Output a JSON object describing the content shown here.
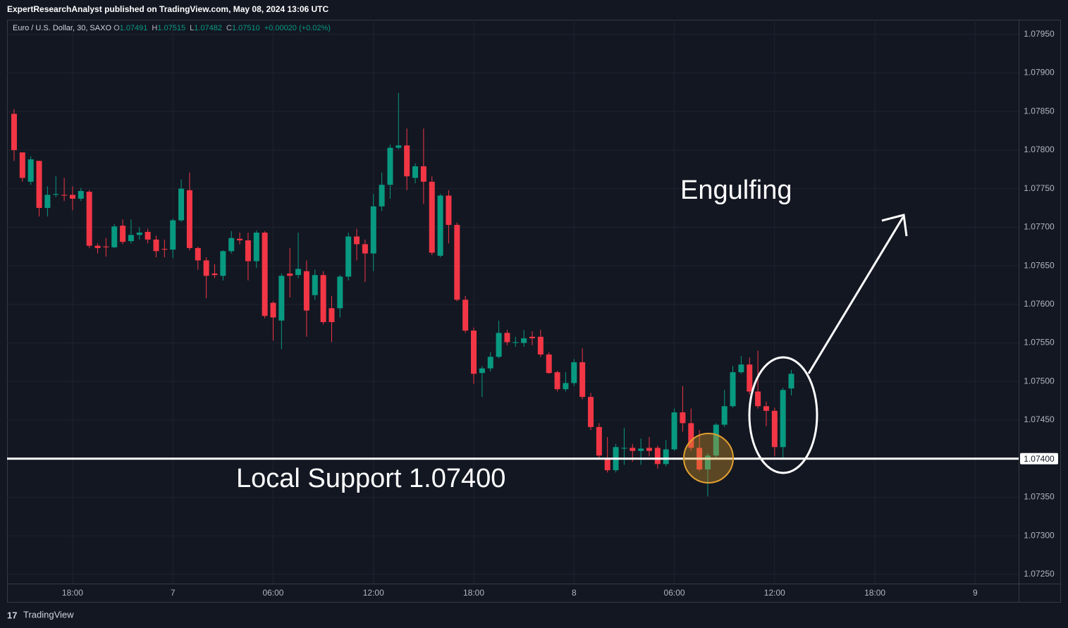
{
  "header": {
    "title": "ExpertResearchAnalyst published on TradingView.com, May 08, 2024 13:06 UTC"
  },
  "footer": {
    "brand": "TradingView"
  },
  "chart_data": {
    "type": "candlestick",
    "legend": {
      "symbol": "Euro / U.S. Dollar, 30, SAXO",
      "o_key": "O",
      "o": "1.07491",
      "h_key": "H",
      "h": "1.07515",
      "l_key": "L",
      "l": "1.07482",
      "c_key": "C",
      "c": "1.07510",
      "change": "+0.00020 (+0.02%)"
    },
    "up_color": "#089981",
    "down_color": "#f23645",
    "open": [
      1.07847,
      1.07797,
      1.07759,
      1.07786,
      1.07725,
      1.07742,
      1.07742,
      1.07742,
      1.07737,
      1.07746,
      1.07676,
      1.07675,
      1.07674,
      1.07702,
      1.07682,
      1.0769,
      1.07694,
      1.07684,
      1.07672,
      1.07671,
      1.07709,
      1.07748,
      1.07673,
      1.07657,
      1.0764,
      1.07637,
      1.07669,
      1.07685,
      1.07683,
      1.07656,
      1.07693,
      1.07602,
      1.07579,
      1.0764,
      1.07638,
      1.07643,
      1.07612,
      1.07638,
      1.07595,
      1.07595,
      1.07636,
      1.07688,
      1.07678,
      1.07666,
      1.07727,
      1.07755,
      1.07803,
      1.07806,
      1.07764,
      1.07779,
      1.07759,
      1.07663,
      1.07741,
      1.07703,
      1.07606,
      1.07566,
      1.07511,
      1.07517,
      1.07532,
      1.07563,
      1.0755,
      1.0755,
      1.07558,
      1.07558,
      1.07535,
      1.07512,
      1.0749,
      1.07498,
      1.07525,
      1.0748,
      1.07441,
      1.07401,
      1.07385,
      1.07413,
      1.07414,
      1.0741,
      1.07414,
      1.07414,
      1.07393,
      1.07412,
      1.0746,
      1.07446,
      1.07414,
      1.07386,
      1.07404,
      1.07444,
      1.07468,
      1.07512,
      1.07522,
      1.07487,
      1.07468,
      1.07462,
      1.07415,
      1.07491
    ],
    "high": [
      1.07853,
      1.07797,
      1.07792,
      1.07786,
      1.07753,
      1.07766,
      1.07764,
      1.07753,
      1.07751,
      1.07748,
      1.07679,
      1.07686,
      1.07704,
      1.0771,
      1.0771,
      1.077,
      1.07698,
      1.07689,
      1.07684,
      1.07711,
      1.07762,
      1.07771,
      1.07675,
      1.07661,
      1.07652,
      1.0767,
      1.07695,
      1.07693,
      1.07693,
      1.07696,
      1.07695,
      1.07604,
      1.0764,
      1.07673,
      1.07693,
      1.07657,
      1.07645,
      1.07643,
      1.07611,
      1.07638,
      1.07693,
      1.07698,
      1.07684,
      1.07743,
      1.07771,
      1.07807,
      1.07874,
      1.07828,
      1.07783,
      1.07828,
      1.07766,
      1.07743,
      1.07748,
      1.07706,
      1.07611,
      1.0757,
      1.0752,
      1.07538,
      1.07579,
      1.07567,
      1.07558,
      1.07567,
      1.07565,
      1.07567,
      1.07538,
      1.07514,
      1.07512,
      1.07529,
      1.07543,
      1.07485,
      1.07446,
      1.07428,
      1.07419,
      1.0744,
      1.07419,
      1.07426,
      1.07428,
      1.07417,
      1.07424,
      1.07465,
      1.07494,
      1.07465,
      1.07437,
      1.07407,
      1.07446,
      1.07489,
      1.0752,
      1.07533,
      1.07531,
      1.0754,
      1.07474,
      1.07466,
      1.07492,
      1.07515
    ],
    "low": [
      1.07786,
      1.07759,
      1.07755,
      1.07714,
      1.07714,
      1.07739,
      1.07734,
      1.07722,
      1.07734,
      1.07673,
      1.07666,
      1.07662,
      1.07673,
      1.07678,
      1.07679,
      1.07684,
      1.07679,
      1.07661,
      1.07661,
      1.0766,
      1.07707,
      1.0767,
      1.07645,
      1.07608,
      1.07634,
      1.07631,
      1.07666,
      1.07678,
      1.07631,
      1.07647,
      1.07582,
      1.07553,
      1.07542,
      1.07609,
      1.07634,
      1.07558,
      1.07606,
      1.07574,
      1.07551,
      1.07583,
      1.07631,
      1.07657,
      1.07629,
      1.07643,
      1.07721,
      1.07737,
      1.07801,
      1.07748,
      1.07757,
      1.0773,
      1.07664,
      1.07661,
      1.07679,
      1.07604,
      1.07563,
      1.07497,
      1.0748,
      1.07513,
      1.0753,
      1.07547,
      1.07545,
      1.07545,
      1.07547,
      1.07532,
      1.0751,
      1.07487,
      1.07487,
      1.07494,
      1.07477,
      1.07437,
      1.07401,
      1.07382,
      1.07382,
      1.07392,
      1.07396,
      1.07392,
      1.07403,
      1.07387,
      1.0739,
      1.0741,
      1.07435,
      1.0741,
      1.07384,
      1.07351,
      1.07401,
      1.07441,
      1.07466,
      1.0751,
      1.07483,
      1.07465,
      1.07442,
      1.07403,
      1.07399,
      1.07482
    ],
    "close": [
      1.078,
      1.07764,
      1.07788,
      1.07725,
      1.07742,
      1.07743,
      1.07741,
      1.07737,
      1.07747,
      1.07676,
      1.07673,
      1.07674,
      1.07701,
      1.07681,
      1.0769,
      1.07693,
      1.07684,
      1.07669,
      1.07671,
      1.07709,
      1.0775,
      1.07673,
      1.07657,
      1.07637,
      1.07638,
      1.07669,
      1.07686,
      1.07683,
      1.07656,
      1.07693,
      1.07585,
      1.07583,
      1.07637,
      1.07637,
      1.07646,
      1.07592,
      1.07638,
      1.07577,
      1.07577,
      1.07636,
      1.07688,
      1.07678,
      1.07666,
      1.07727,
      1.07755,
      1.07803,
      1.07806,
      1.07766,
      1.07779,
      1.07759,
      1.07667,
      1.07741,
      1.07703,
      1.07606,
      1.07566,
      1.0751,
      1.07517,
      1.07532,
      1.07563,
      1.07551,
      1.07551,
      1.07556,
      1.07556,
      1.07535,
      1.07511,
      1.0749,
      1.07498,
      1.07525,
      1.0748,
      1.07441,
      1.07404,
      1.07385,
      1.07415,
      1.07414,
      1.0741,
      1.07413,
      1.0741,
      1.07393,
      1.07412,
      1.0746,
      1.07446,
      1.07414,
      1.07386,
      1.07404,
      1.07444,
      1.07468,
      1.07512,
      1.07522,
      1.07487,
      1.07468,
      1.07462,
      1.07415,
      1.07489,
      1.0751
    ],
    "xlim": [
      -0.84,
      120.2
    ],
    "xticks": [
      {
        "value": 7,
        "label": "18:00"
      },
      {
        "value": 19,
        "label": "7"
      },
      {
        "value": 31,
        "label": "06:00"
      },
      {
        "value": 43,
        "label": "12:00"
      },
      {
        "value": 55,
        "label": "18:00"
      },
      {
        "value": 67,
        "label": "8"
      },
      {
        "value": 79,
        "label": "06:00"
      },
      {
        "value": 91,
        "label": "12:00"
      },
      {
        "value": 103,
        "label": "18:00"
      },
      {
        "value": 115,
        "label": "9"
      }
    ],
    "ylim": [
      1.07238,
      1.07969
    ],
    "yticks": [
      {
        "value": 1.0795,
        "label": "1.07950"
      },
      {
        "value": 1.079,
        "label": "1.07900"
      },
      {
        "value": 1.0785,
        "label": "1.07850"
      },
      {
        "value": 1.078,
        "label": "1.07800"
      },
      {
        "value": 1.0775,
        "label": "1.07750"
      },
      {
        "value": 1.077,
        "label": "1.07700"
      },
      {
        "value": 1.0765,
        "label": "1.07650"
      },
      {
        "value": 1.076,
        "label": "1.07600"
      },
      {
        "value": 1.0755,
        "label": "1.07550"
      },
      {
        "value": 1.075,
        "label": "1.07500"
      },
      {
        "value": 1.0745,
        "label": "1.07450"
      },
      {
        "value": 1.074,
        "label": "1.07400"
      },
      {
        "value": 1.0735,
        "label": "1.07350"
      },
      {
        "value": 1.073,
        "label": "1.07300"
      },
      {
        "value": 1.0725,
        "label": "1.07250"
      }
    ],
    "grid": true,
    "support_line": {
      "value": 1.074,
      "label": "1.07400"
    },
    "annotations": [
      "Engulfing",
      "Local Support 1.07400"
    ]
  }
}
